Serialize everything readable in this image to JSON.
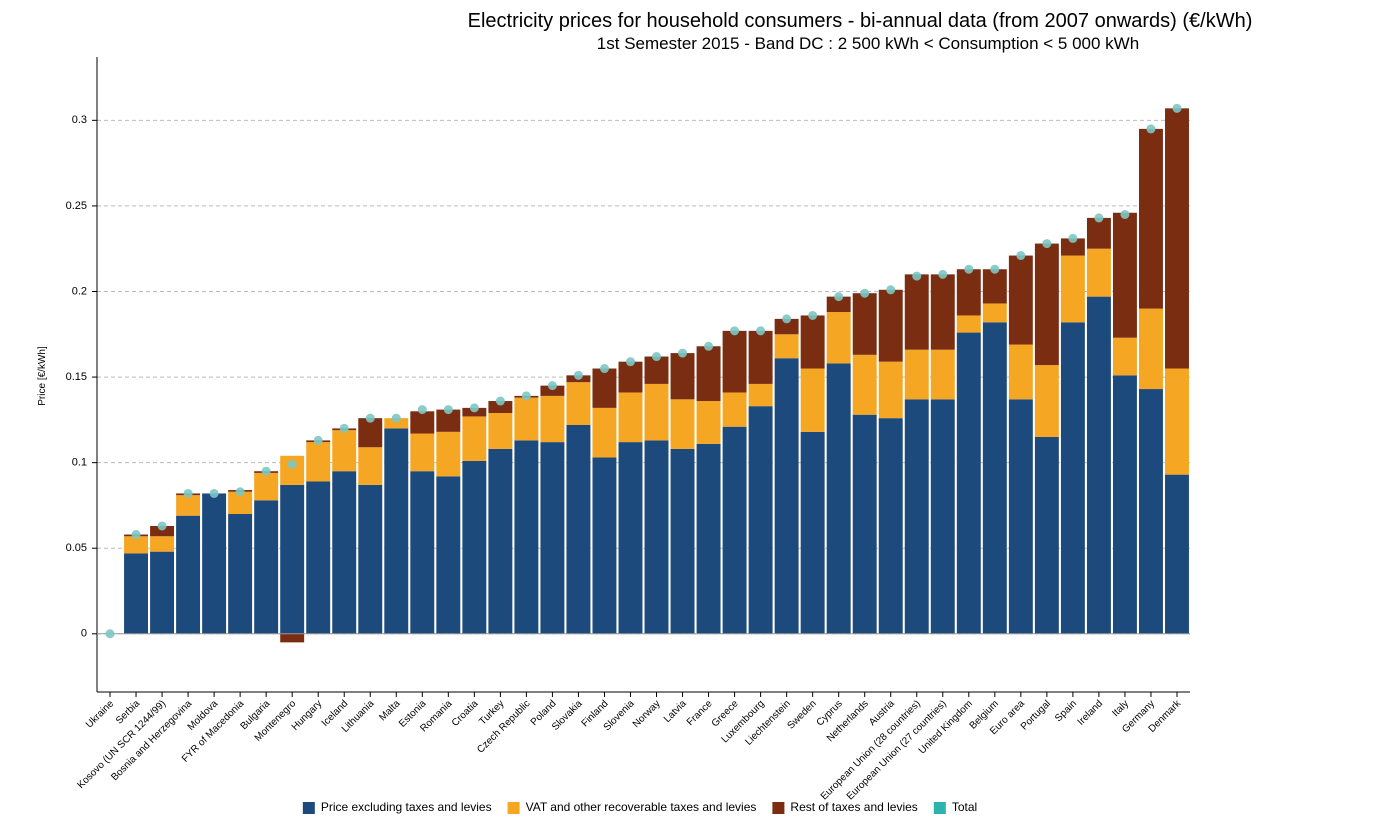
{
  "chart_data": {
    "type": "stacked-bar",
    "title": "Electricity prices for household consumers - bi-annual data (from 2007 onwards) (€/kWh)",
    "subtitle": "1st Semester 2015 - Band DC : 2 500 kWh < Consumption < 5 000 kWh",
    "y_label": "Price [€/kWh]",
    "categories": [
      "Ukraine",
      "Serbia",
      "Kosovo (UN SCR 1244/99)",
      "Bosnia and Herzegovina",
      "Moldova",
      "FYR of Macedonia",
      "Bulgaria",
      "Montenegro",
      "Hungary",
      "Iceland",
      "Lithuania",
      "Malta",
      "Estonia",
      "Romania",
      "Croatia",
      "Turkey",
      "Czech Republic",
      "Poland",
      "Slovakia",
      "Finland",
      "Slovenia",
      "Norway",
      "Latvia",
      "France",
      "Greece",
      "Luxembourg",
      "Liechtenstein",
      "Sweden",
      "Cyprus",
      "Netherlands",
      "Austria",
      "European Union (28 countries)",
      "European Union (27 countries)",
      "United Kingdom",
      "Belgium",
      "Euro area",
      "Portugal",
      "Spain",
      "Ireland",
      "Italy",
      "Germany",
      "Denmark"
    ],
    "series": [
      {
        "name": "Price excluding taxes and levies",
        "color": "#1d4a7c",
        "values": [
          0,
          0.047,
          0.048,
          0.069,
          0.082,
          0.07,
          0.078,
          0.087,
          0.089,
          0.095,
          0.087,
          0.12,
          0.095,
          0.092,
          0.101,
          0.108,
          0.113,
          0.112,
          0.122,
          0.103,
          0.112,
          0.113,
          0.108,
          0.111,
          0.121,
          0.133,
          0.161,
          0.118,
          0.158,
          0.128,
          0.126,
          0.137,
          0.137,
          0.176,
          0.182,
          0.137,
          0.115,
          0.182,
          0.197,
          0.151,
          0.143,
          0.093
        ]
      },
      {
        "name": "VAT and other recoverable taxes and levies",
        "color": "#f5a623",
        "values": [
          0,
          0.01,
          0.009,
          0.012,
          0,
          0.013,
          0.016,
          0.017,
          0.023,
          0.024,
          0.022,
          0.006,
          0.022,
          0.026,
          0.026,
          0.021,
          0.025,
          0.027,
          0.025,
          0.029,
          0.029,
          0.033,
          0.029,
          0.025,
          0.02,
          0.013,
          0.014,
          0.037,
          0.03,
          0.035,
          0.033,
          0.029,
          0.029,
          0.01,
          0.011,
          0.032,
          0.042,
          0.039,
          0.028,
          0.022,
          0.047,
          0.062
        ]
      },
      {
        "name": "Rest of taxes and levies",
        "color": "#7b2d12",
        "values": [
          0,
          0.001,
          0.006,
          0.001,
          0,
          0.001,
          0.001,
          -0.005,
          0.001,
          0.001,
          0.017,
          0,
          0.013,
          0.013,
          0.005,
          0.007,
          0.001,
          0.006,
          0.004,
          0.023,
          0.018,
          0.016,
          0.027,
          0.032,
          0.036,
          0.031,
          0.009,
          0.031,
          0.009,
          0.036,
          0.042,
          0.044,
          0.044,
          0.027,
          0.02,
          0.052,
          0.071,
          0.01,
          0.018,
          0.073,
          0.105,
          0.152
        ]
      },
      {
        "name": "Total",
        "color": "#7cc7c3",
        "marker": "circle",
        "values": [
          0,
          0.058,
          0.063,
          0.082,
          0.082,
          0.083,
          0.095,
          0.099,
          0.113,
          0.12,
          0.126,
          0.126,
          0.131,
          0.131,
          0.132,
          0.136,
          0.139,
          0.145,
          0.151,
          0.155,
          0.159,
          0.162,
          0.164,
          0.168,
          0.177,
          0.177,
          0.184,
          0.186,
          0.197,
          0.199,
          0.201,
          0.209,
          0.21,
          0.213,
          0.213,
          0.221,
          0.228,
          0.231,
          0.243,
          0.245,
          0.295,
          0.307
        ]
      }
    ],
    "legend_marker_colors": [
      "#1d4a7c",
      "#f5a623",
      "#7b2d12",
      "#2bb3ad"
    ],
    "ylim": [
      -0.034,
      0.337
    ],
    "yticks": [
      0,
      0.05,
      0.1,
      0.15,
      0.2,
      0.25,
      0.3
    ],
    "grid": true
  }
}
